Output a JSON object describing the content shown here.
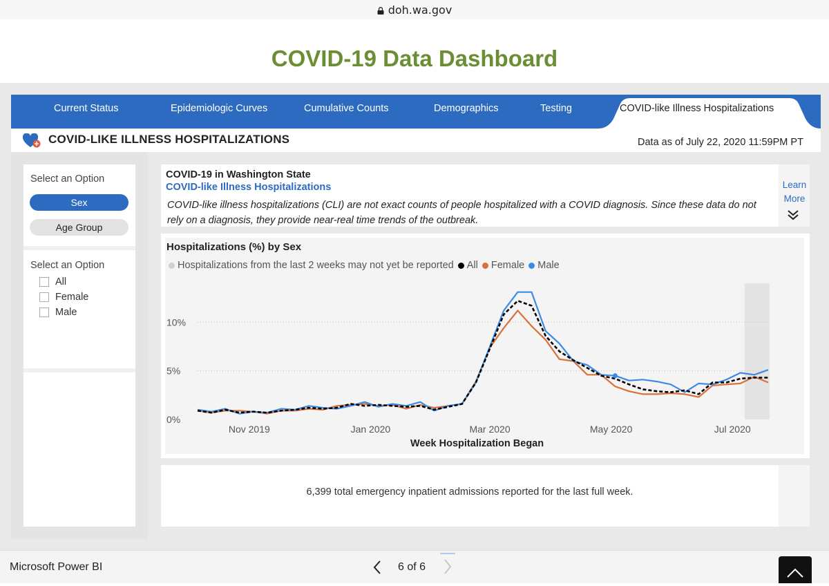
{
  "browser": {
    "url": "doh.wa.gov"
  },
  "page": {
    "title": "COVID-19 Data Dashboard"
  },
  "tabs": [
    {
      "label": "Current Status"
    },
    {
      "label": "Epidemiologic Curves"
    },
    {
      "label": "Cumulative Counts"
    },
    {
      "label": "Demographics"
    },
    {
      "label": "Testing"
    },
    {
      "label": "COVID-like Illness Hospitalizations",
      "active": true
    }
  ],
  "header": {
    "title": "COVID-LIKE ILLNESS HOSPITALIZATIONS",
    "data_as_of": "Data as of July 22, 2020 11:59PM PT"
  },
  "filters": {
    "option_label_1": "Select an Option",
    "buttons": [
      "Sex",
      "Age Group"
    ],
    "selected_button": "Sex",
    "option_label_2": "Select an Option",
    "checkboxes": [
      "All",
      "Female",
      "Male"
    ]
  },
  "info": {
    "heading": "COVID-19 in Washington State",
    "subheading": "COVID-like Illness Hospitalizations",
    "description": "COVID-like illness hospitalizations (CLI) are not exact counts of people hospitalized with a COVID diagnosis. Since these data do not rely on a diagnosis, they provide near-real time trends of the outbreak.",
    "learn_more": "Learn More"
  },
  "chart_data": {
    "type": "line",
    "title": "Hospitalizations (%) by Sex",
    "xlabel": "Week Hospitalization Began",
    "ylabel": "",
    "x_ticks": [
      "Nov 2019",
      "Jan 2020",
      "Mar 2020",
      "May 2020",
      "Jul 2020"
    ],
    "y_ticks": [
      "0%",
      "5%",
      "10%"
    ],
    "ylim": [
      0,
      14
    ],
    "grid": true,
    "legend_position": "top-left",
    "legend": [
      {
        "name": "Hospitalizations from the last 2 weeks may not yet be reported",
        "color": "#d0d0d0"
      },
      {
        "name": "All",
        "color": "#000000"
      },
      {
        "name": "Female",
        "color": "#d9703c"
      },
      {
        "name": "Male",
        "color": "#3b8be6"
      }
    ],
    "x": [
      "2019-10-06",
      "2019-10-13",
      "2019-10-20",
      "2019-10-27",
      "2019-11-03",
      "2019-11-10",
      "2019-11-17",
      "2019-11-24",
      "2019-12-01",
      "2019-12-08",
      "2019-12-15",
      "2019-12-22",
      "2019-12-29",
      "2020-01-05",
      "2020-01-12",
      "2020-01-19",
      "2020-01-26",
      "2020-02-02",
      "2020-02-09",
      "2020-02-16",
      "2020-02-23",
      "2020-03-01",
      "2020-03-08",
      "2020-03-15",
      "2020-03-22",
      "2020-03-29",
      "2020-04-05",
      "2020-04-12",
      "2020-04-19",
      "2020-04-26",
      "2020-05-03",
      "2020-05-10",
      "2020-05-17",
      "2020-05-24",
      "2020-05-31",
      "2020-06-07",
      "2020-06-14",
      "2020-06-21",
      "2020-06-28",
      "2020-07-05",
      "2020-07-12",
      "2020-07-19"
    ],
    "series": [
      {
        "name": "All",
        "color": "#000000",
        "dashed": true,
        "values": [
          0.9,
          0.7,
          1.0,
          0.7,
          0.8,
          0.7,
          0.9,
          1.0,
          1.2,
          1.1,
          1.2,
          1.6,
          1.4,
          1.5,
          1.4,
          1.3,
          1.4,
          1.0,
          1.3,
          1.6,
          3.8,
          7.3,
          10.8,
          12.2,
          11.7,
          8.6,
          7.0,
          6.1,
          5.3,
          4.5,
          4.2,
          3.6,
          3.1,
          2.9,
          2.8,
          3.0,
          2.6,
          3.8,
          3.8,
          4.2,
          4.3,
          4.3
        ]
      },
      {
        "name": "Female",
        "color": "#d9703c",
        "values": [
          0.9,
          0.7,
          0.9,
          0.9,
          0.8,
          0.6,
          0.9,
          0.9,
          1.1,
          1.0,
          1.4,
          1.5,
          1.6,
          1.4,
          1.5,
          1.1,
          1.5,
          1.2,
          1.4,
          1.6,
          3.9,
          7.4,
          9.4,
          11.2,
          9.6,
          8.2,
          6.2,
          6.0,
          4.6,
          4.6,
          3.4,
          2.9,
          2.6,
          2.6,
          2.7,
          2.6,
          2.3,
          3.5,
          3.6,
          3.7,
          4.4,
          3.8
        ]
      },
      {
        "name": "Male",
        "color": "#3b8be6",
        "values": [
          1.0,
          0.8,
          1.1,
          0.6,
          0.8,
          0.7,
          1.1,
          1.0,
          1.4,
          1.2,
          1.1,
          1.4,
          1.8,
          1.3,
          1.6,
          1.4,
          1.8,
          0.9,
          1.4,
          1.6,
          3.8,
          7.5,
          11.2,
          13.1,
          13.1,
          9.1,
          7.8,
          6.0,
          5.6,
          4.6,
          4.5,
          4.0,
          4.1,
          3.9,
          3.6,
          2.8,
          3.7,
          3.6,
          4.1,
          4.8,
          4.6,
          5.1
        ]
      }
    ],
    "shaded_region_last_weeks": 2
  },
  "summary": {
    "text": "6,399 total emergency inpatient admissions reported for the last full week."
  },
  "footer": {
    "app_name": "Microsoft Power BI",
    "page_indicator": "6 of 6"
  }
}
